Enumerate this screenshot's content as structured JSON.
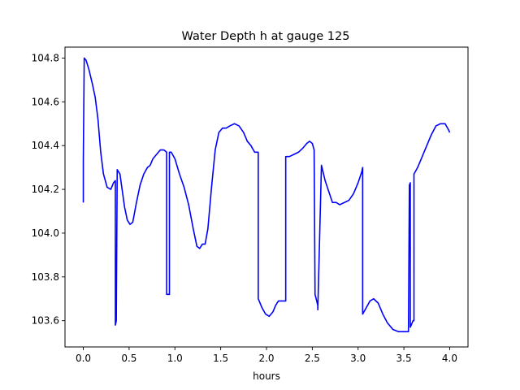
{
  "chart_data": {
    "type": "line",
    "title": "Water Depth h at gauge 125",
    "xlabel": "hours",
    "ylabel": "",
    "xlim": [
      -0.2,
      4.2
    ],
    "ylim": [
      103.48,
      104.85
    ],
    "xticks": [
      0.0,
      0.5,
      1.0,
      1.5,
      2.0,
      2.5,
      3.0,
      3.5,
      4.0
    ],
    "xtick_labels": [
      "0.0",
      "0.5",
      "1.0",
      "1.5",
      "2.0",
      "2.5",
      "3.0",
      "3.5",
      "4.0"
    ],
    "yticks": [
      103.6,
      103.8,
      104.0,
      104.2,
      104.4,
      104.6,
      104.8
    ],
    "ytick_labels": [
      "103.6",
      "103.8",
      "104.0",
      "104.2",
      "104.4",
      "104.6",
      "104.8"
    ],
    "grid": false,
    "series": [
      {
        "color": "#0000ff",
        "x": [
          0.0,
          0.0,
          0.01,
          0.03,
          0.06,
          0.1,
          0.13,
          0.16,
          0.19,
          0.22,
          0.26,
          0.3,
          0.33,
          0.35,
          0.35,
          0.36,
          0.37,
          0.37,
          0.4,
          0.42,
          0.45,
          0.48,
          0.51,
          0.54,
          0.58,
          0.62,
          0.66,
          0.7,
          0.73,
          0.76,
          0.8,
          0.84,
          0.88,
          0.91,
          0.91,
          0.94,
          0.94,
          0.96,
          1.0,
          1.05,
          1.1,
          1.15,
          1.2,
          1.24,
          1.27,
          1.3,
          1.33,
          1.36,
          1.4,
          1.44,
          1.48,
          1.52,
          1.56,
          1.6,
          1.65,
          1.7,
          1.75,
          1.79,
          1.83,
          1.87,
          1.91,
          1.91,
          1.95,
          1.99,
          2.03,
          2.07,
          2.1,
          2.13,
          2.17,
          2.21,
          2.21,
          2.25,
          2.3,
          2.35,
          2.4,
          2.44,
          2.47,
          2.5,
          2.52,
          2.53,
          2.56,
          2.56,
          2.6,
          2.64,
          2.68,
          2.72,
          2.76,
          2.8,
          2.85,
          2.9,
          2.95,
          3.0,
          3.04,
          3.05,
          3.05,
          3.09,
          3.13,
          3.17,
          3.22,
          3.27,
          3.32,
          3.38,
          3.44,
          3.5,
          3.55,
          3.56,
          3.57,
          3.57,
          3.6,
          3.61,
          3.61,
          3.65,
          3.7,
          3.75,
          3.8,
          3.85,
          3.9,
          3.95,
          3.99,
          4.0
        ],
        "y": [
          104.14,
          104.34,
          104.8,
          104.79,
          104.75,
          104.68,
          104.62,
          104.52,
          104.37,
          104.27,
          104.21,
          104.2,
          104.23,
          104.24,
          103.58,
          103.6,
          104.28,
          104.29,
          104.27,
          104.21,
          104.12,
          104.06,
          104.04,
          104.05,
          104.14,
          104.22,
          104.27,
          104.3,
          104.31,
          104.34,
          104.36,
          104.38,
          104.38,
          104.37,
          103.72,
          103.72,
          104.37,
          104.37,
          104.34,
          104.27,
          104.21,
          104.13,
          104.02,
          103.94,
          103.93,
          103.95,
          103.95,
          104.02,
          104.21,
          104.38,
          104.46,
          104.48,
          104.48,
          104.49,
          104.5,
          104.49,
          104.46,
          104.42,
          104.4,
          104.37,
          104.37,
          103.7,
          103.66,
          103.63,
          103.62,
          103.64,
          103.67,
          103.69,
          103.69,
          103.69,
          104.35,
          104.35,
          104.36,
          104.37,
          104.39,
          104.41,
          104.42,
          104.41,
          104.38,
          103.72,
          103.67,
          103.65,
          104.31,
          104.24,
          104.19,
          104.14,
          104.14,
          104.13,
          104.14,
          104.15,
          104.18,
          104.23,
          104.28,
          104.3,
          103.63,
          103.66,
          103.69,
          103.7,
          103.68,
          103.63,
          103.59,
          103.56,
          103.55,
          103.55,
          103.55,
          104.22,
          104.23,
          103.57,
          103.6,
          103.6,
          104.27,
          104.3,
          104.35,
          104.4,
          104.45,
          104.49,
          104.5,
          104.5,
          104.47,
          104.46
        ]
      }
    ]
  }
}
